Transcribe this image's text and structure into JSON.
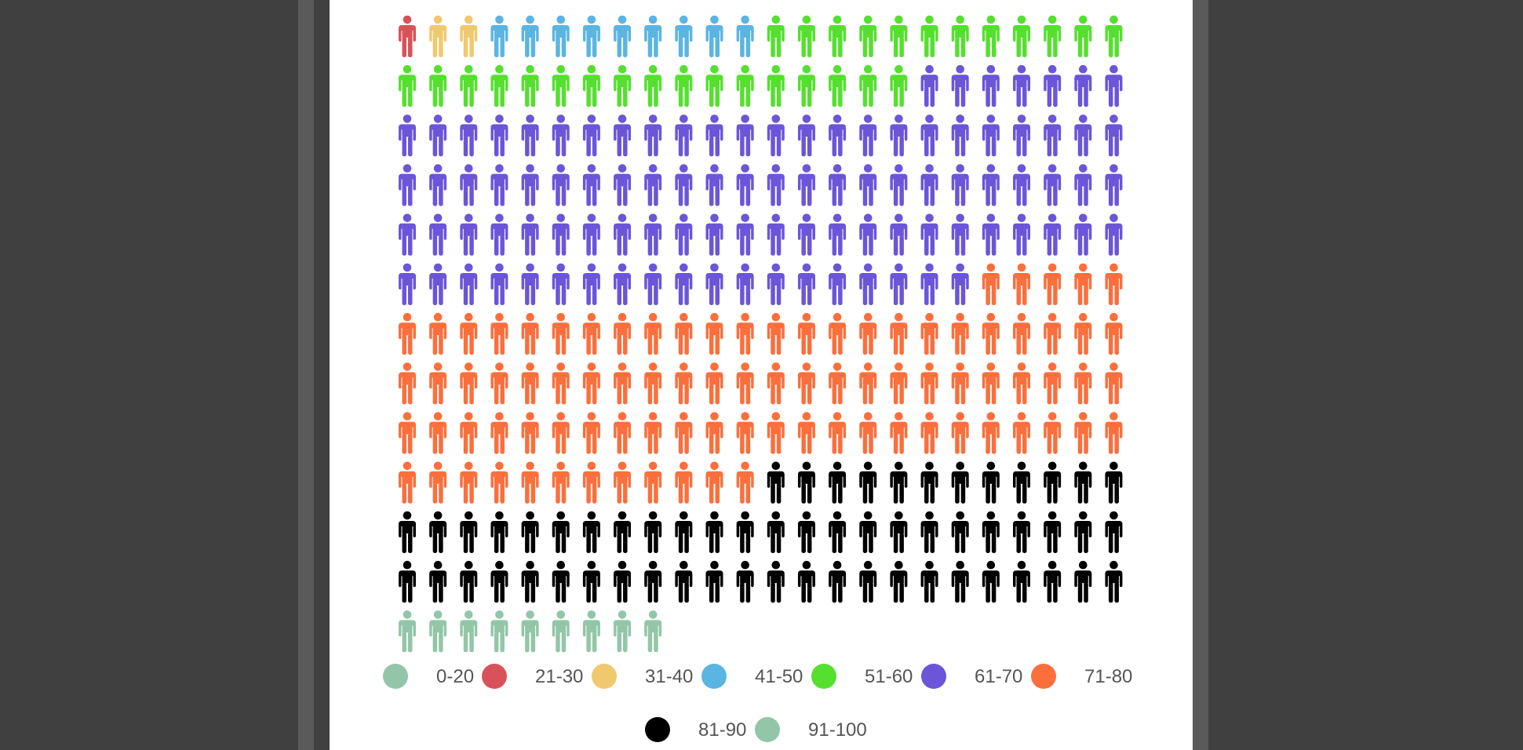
{
  "chart_data": {
    "type": "pictograph",
    "title": "",
    "icon": "person-icon",
    "columns": 24,
    "rows": 12,
    "categories": [
      "0-20",
      "21-30",
      "31-40",
      "41-50",
      "51-60",
      "61-70",
      "71-80",
      "81-90",
      "91-100"
    ],
    "colors": [
      "#93c6a8",
      "#d9525a",
      "#f0c96e",
      "#5ab5e3",
      "#55e02f",
      "#6c55d9",
      "#fb6f3c",
      "#000000",
      "#93c6a8"
    ],
    "values": [
      0,
      1,
      2,
      9,
      29,
      98,
      89,
      60,
      9
    ],
    "grid_order": [
      "21-30",
      "31-40",
      "41-50",
      "51-60",
      "61-70",
      "71-80",
      "81-90",
      "91-100"
    ],
    "legend": {
      "position": "bottom",
      "rows": [
        [
          "0-20",
          "21-30",
          "31-40",
          "41-50",
          "51-60",
          "61-70",
          "71-80"
        ],
        [
          "81-90",
          "91-100"
        ]
      ]
    }
  }
}
